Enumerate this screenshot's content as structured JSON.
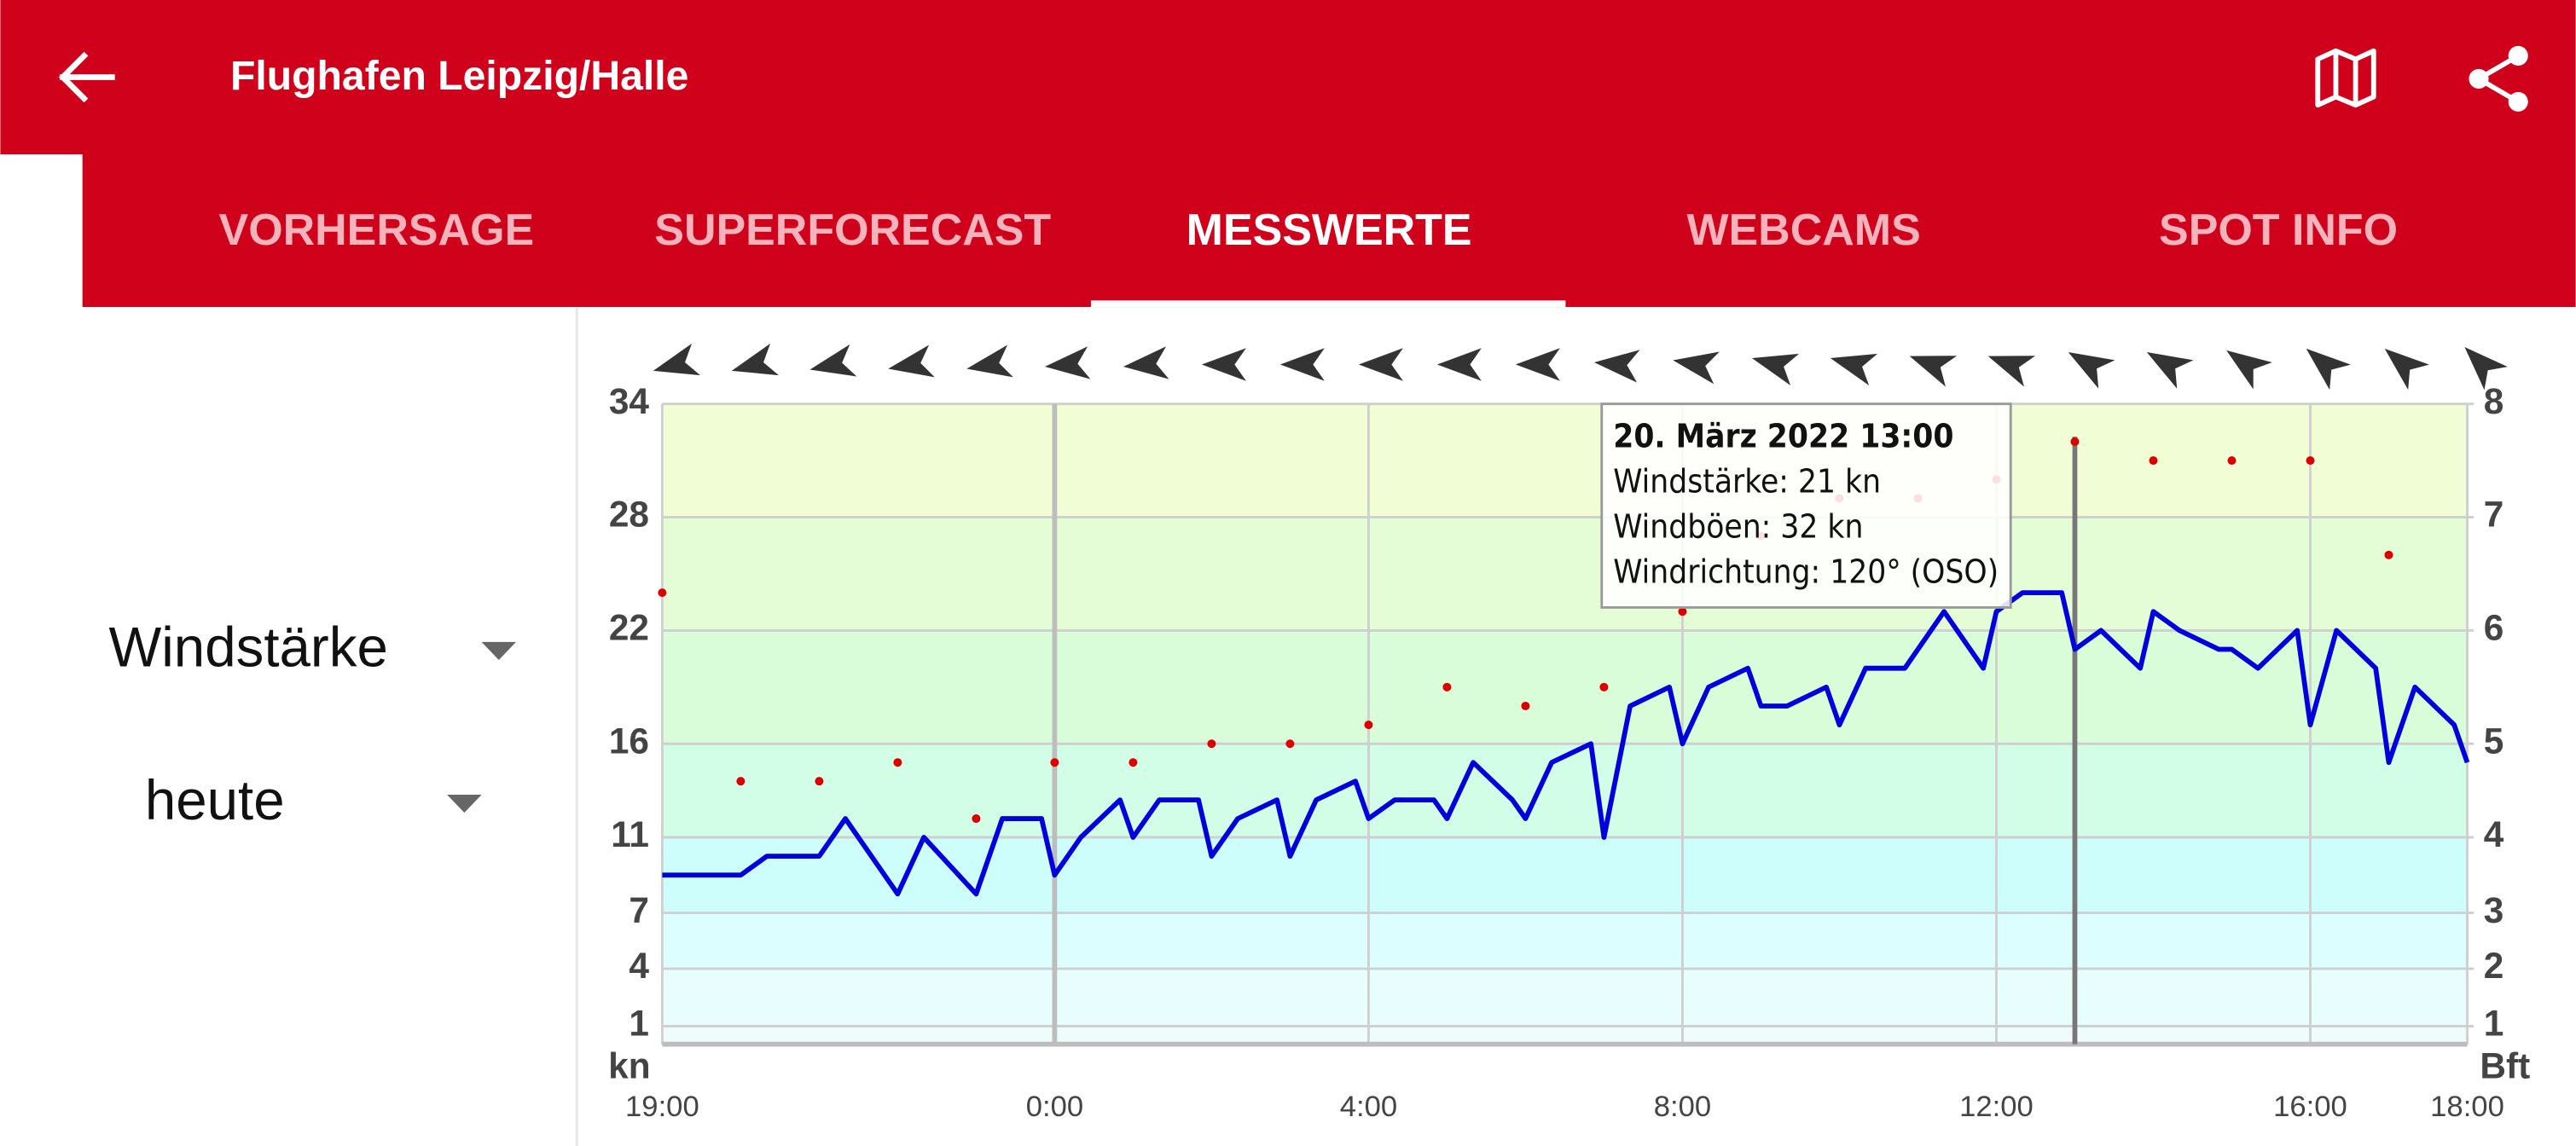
{
  "header": {
    "title": "Flughafen Leipzig/Halle"
  },
  "tabs": [
    "VORHERSAGE",
    "SUPERFORECAST",
    "MESSWERTE",
    "WEBCAMS",
    "SPOT INFO"
  ],
  "selectors": {
    "measure": "Windstärke",
    "period": "heute"
  },
  "chart_data": {
    "type": "line",
    "ylabel": "kn",
    "y2label": "Bft",
    "xlim": [
      0,
      1380
    ],
    "xticks": [
      {
        "value": 0,
        "label": "19:00"
      },
      {
        "value": 300,
        "label": "0:00"
      },
      {
        "value": 540,
        "label": "4:00"
      },
      {
        "value": 780,
        "label": "8:00"
      },
      {
        "value": 1020,
        "label": "12:00"
      },
      {
        "value": 1260,
        "label": "16:00"
      },
      {
        "value": 1380,
        "label": "18:00"
      }
    ],
    "ylim": [
      0,
      34
    ],
    "yticks": [
      1,
      4,
      7,
      11,
      16,
      22,
      28,
      34
    ],
    "y2lim": [
      0,
      8
    ],
    "y2ticks": [
      1,
      2,
      3,
      4,
      5,
      6,
      7,
      8
    ],
    "band_colors": [
      "#effcfc",
      "#e8fdfd",
      "#dcfefe",
      "#cdfefb",
      "#d2fde6",
      "#d9fdd9",
      "#e5fdd6",
      "#f1fdd4"
    ],
    "grid": true,
    "series": [
      {
        "kind": "line",
        "color": "#0000dd",
        "x": [
          0,
          60,
          80,
          120,
          140,
          180,
          200,
          240,
          260,
          290,
          300,
          320,
          350,
          360,
          380,
          410,
          420,
          440,
          470,
          480,
          500,
          530,
          540,
          560,
          590,
          600,
          620,
          650,
          660,
          680,
          710,
          720,
          740,
          770,
          780,
          800,
          830,
          840,
          860,
          890,
          900,
          920,
          950,
          980,
          1010,
          1020,
          1040,
          1070,
          1080,
          1100,
          1130,
          1140,
          1160,
          1190,
          1200,
          1220,
          1250,
          1260,
          1280,
          1310,
          1320,
          1340,
          1370,
          1380
        ],
        "values": [
          9,
          9,
          10,
          10,
          12,
          8,
          11,
          8,
          12,
          12,
          9,
          11,
          13,
          11,
          13,
          13,
          10,
          12,
          13,
          10,
          13,
          14,
          12,
          13,
          13,
          12,
          15,
          13,
          12,
          15,
          16,
          11,
          18,
          19,
          16,
          19,
          20,
          18,
          18,
          19,
          17,
          20,
          20,
          23,
          20,
          23,
          24,
          24,
          21,
          22,
          20,
          23,
          22,
          21,
          21,
          20,
          22,
          17,
          22,
          20,
          15,
          19,
          17,
          15
        ]
      },
      {
        "kind": "scatter",
        "color": "#dd0000",
        "x": [
          0,
          60,
          120,
          180,
          240,
          300,
          360,
          420,
          480,
          540,
          600,
          660,
          720,
          780,
          840,
          900,
          960,
          1020,
          1080,
          1140,
          1200,
          1260,
          1320
        ],
        "values": [
          24,
          14,
          14,
          15,
          12,
          15,
          15,
          16,
          16,
          17,
          19,
          18,
          19,
          23,
          27,
          29,
          29,
          30,
          32,
          31,
          31,
          31,
          26
        ]
      }
    ],
    "wind_direction": {
      "x": [
        0,
        60,
        120,
        180,
        240,
        300,
        360,
        420,
        480,
        540,
        600,
        660,
        720,
        780,
        840,
        900,
        960,
        1020,
        1080,
        1140,
        1200,
        1260,
        1320,
        1380
      ],
      "values": [
        75,
        75,
        78,
        80,
        80,
        85,
        85,
        90,
        90,
        90,
        90,
        90,
        95,
        100,
        105,
        105,
        110,
        110,
        120,
        120,
        125,
        130,
        130,
        135
      ]
    },
    "highlight_x": 1080,
    "tooltip": [
      "20. März 2022 13:00",
      "Windstärke: 21 kn",
      "Windböen: 32 kn",
      "Windrichtung: 120° (OSO)"
    ]
  }
}
